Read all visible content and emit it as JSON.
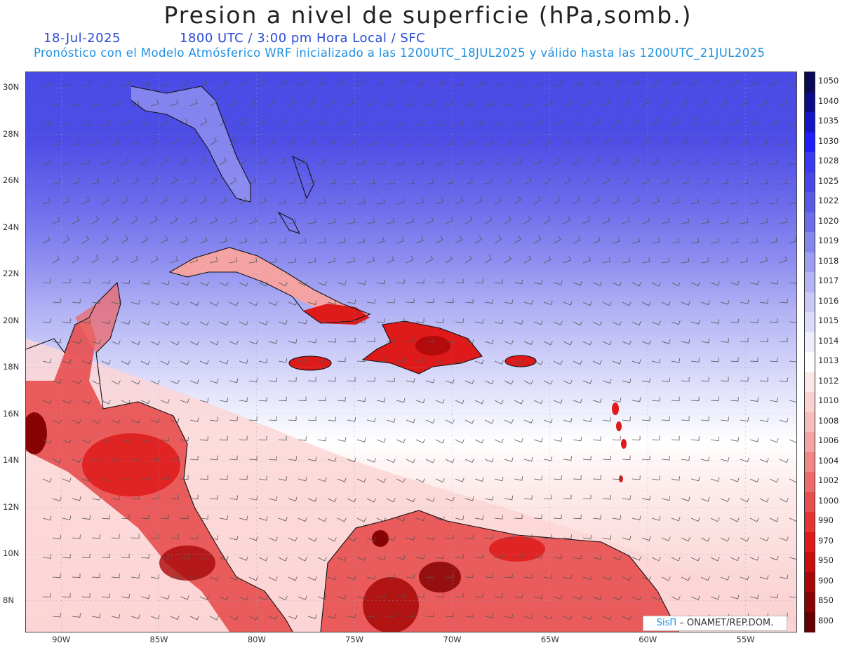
{
  "header": {
    "title": "Presion a nivel de superficie (hPa,somb.)",
    "date": "18-Jul-2025",
    "time_info": "1800 UTC / 3:00 pm Hora Local / SFC",
    "description": "Pronóstico con el Modelo Atmósferico WRF inicializado a las 1200UTC_18JUL2025 y válido hasta las  1200UTC_21JUL2025"
  },
  "map": {
    "lat_labels": [
      "30N",
      "28N",
      "26N",
      "24N",
      "22N",
      "20N",
      "18N",
      "16N",
      "14N",
      "12N",
      "10N",
      "8N"
    ],
    "lon_labels": [
      "90W",
      "85W",
      "80W",
      "75W",
      "70W",
      "65W",
      "60W",
      "55W"
    ],
    "lat_range": [
      6.7,
      30.7
    ],
    "lon_range": [
      -91.8,
      -52.4
    ]
  },
  "colorbar": {
    "levels": [
      "1050",
      "1040",
      "1035",
      "1030",
      "1028",
      "1025",
      "1022",
      "1020",
      "1019",
      "1018",
      "1017",
      "1016",
      "1015",
      "1014",
      "1013",
      "1012",
      "1010",
      "1008",
      "1006",
      "1004",
      "1002",
      "1000",
      "990",
      "970",
      "950",
      "900",
      "850",
      "800"
    ],
    "colors": [
      "#0a0a55",
      "#0d0d8c",
      "#1414c8",
      "#1e1eff",
      "#3a3af0",
      "#4848e6",
      "#5a5ae8",
      "#6d6dec",
      "#8585ee",
      "#9d9df2",
      "#b3b3f5",
      "#c9c9f8",
      "#dcdcfa",
      "#eeeefd",
      "#ffffff",
      "#fde8e8",
      "#fad2d2",
      "#f7bcbc",
      "#f4a2a2",
      "#f08686",
      "#ec6a6a",
      "#e84e4e",
      "#e43434",
      "#de1a1a",
      "#c80e0e",
      "#a80808",
      "#880404",
      "#660000"
    ]
  },
  "credit": {
    "brand": "SisΠ",
    "org": " – ONAMET/REP.DOM."
  }
}
